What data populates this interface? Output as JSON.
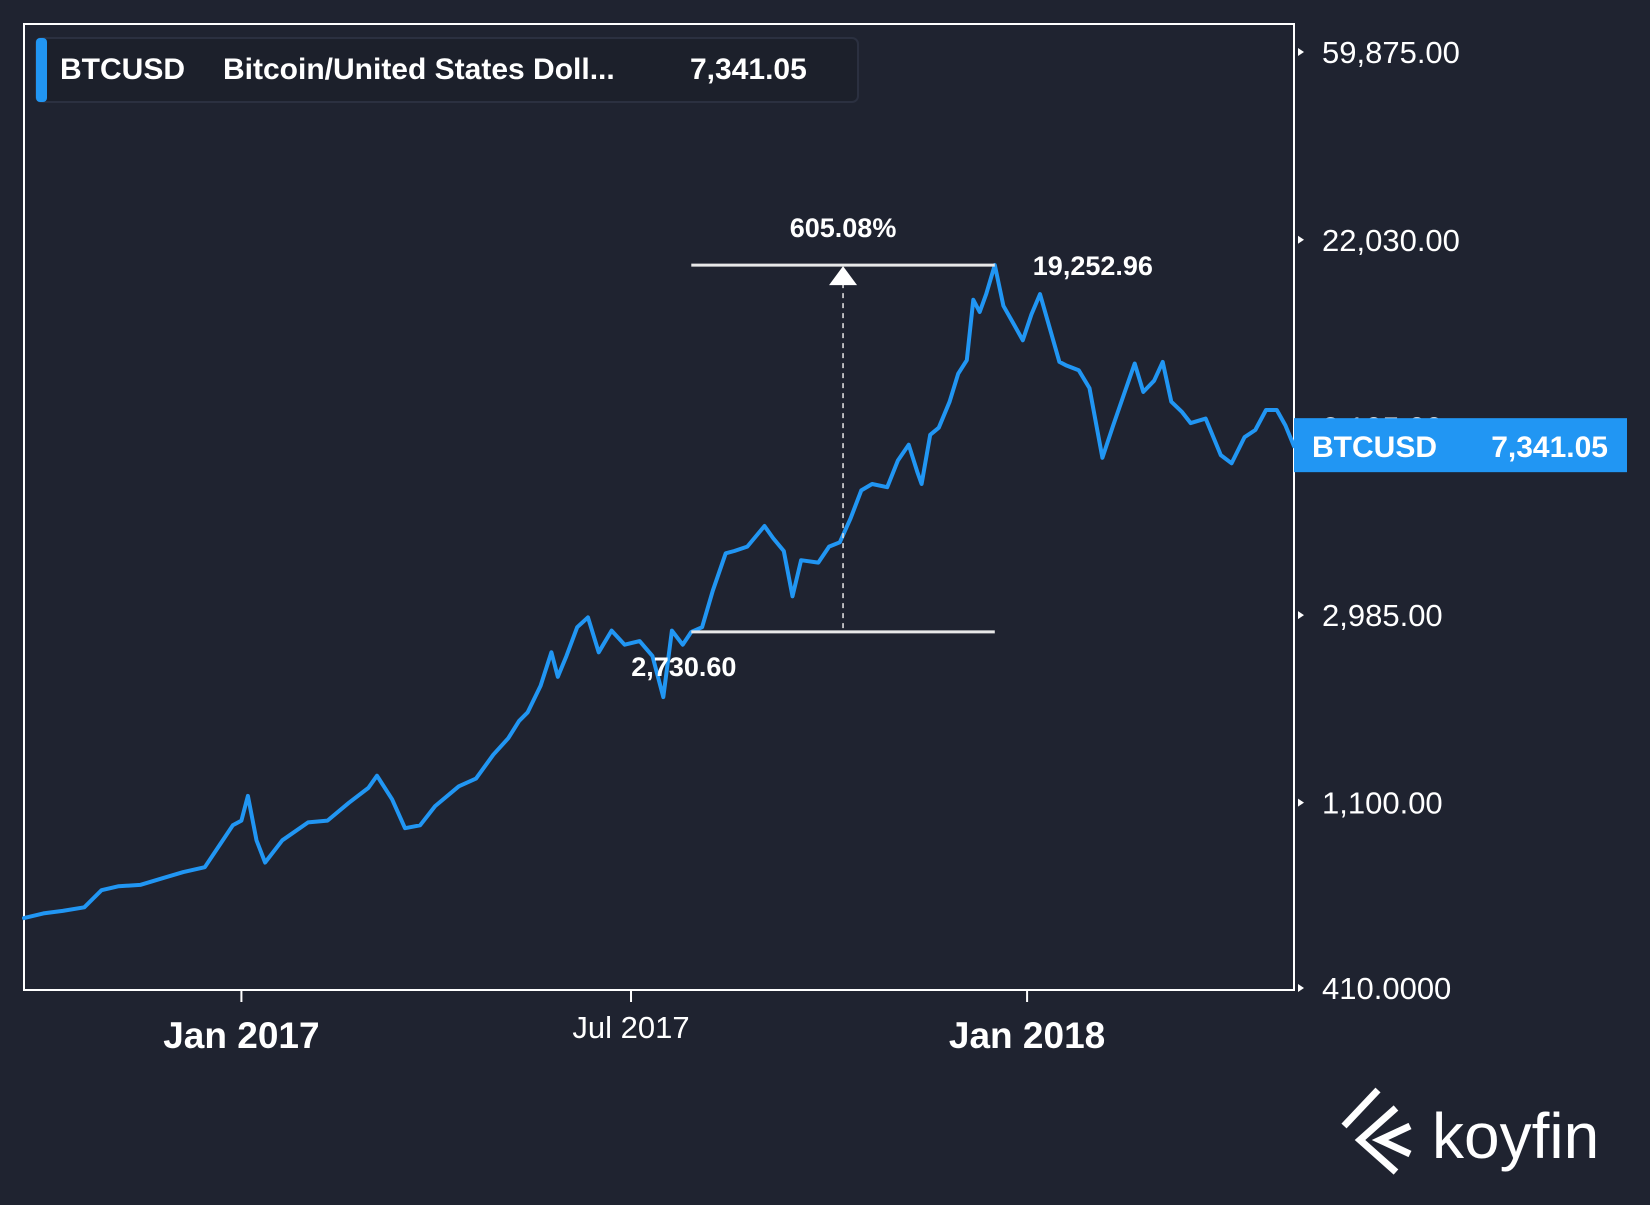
{
  "colors": {
    "background": "#1f2330",
    "line": "#2196f3",
    "axis": "#ffffff",
    "text": "#ffffff",
    "tag_bg": "#2196f3",
    "legend_bg": "#1c202b"
  },
  "legend": {
    "symbol": "BTCUSD",
    "description": "Bitcoin/United States Doll...",
    "value": "7,341.05"
  },
  "price_tag": {
    "symbol": "BTCUSD",
    "value": "7,341.05"
  },
  "measure": {
    "percent": "605.08%",
    "low_label": "2,730.60",
    "high_label": "19,252.96",
    "low": 2730.6,
    "high": 19252.96,
    "start_date": "2017-07-29",
    "end_date": "2017-12-17"
  },
  "logo": {
    "text": "koyfin"
  },
  "chart_data": {
    "type": "line",
    "title": "",
    "xlabel": "",
    "ylabel": "",
    "y_scale": "log",
    "ylim": [
      410,
      59875
    ],
    "xlim": [
      "2016-09-22",
      "2018-05-05"
    ],
    "grid": false,
    "legend": "top-left",
    "y_ticks": [
      {
        "value": 59875,
        "label": "59,875.00"
      },
      {
        "value": 22030,
        "label": "22,030.00"
      },
      {
        "value": 8105,
        "label": "8,105.00"
      },
      {
        "value": 2985,
        "label": "2,985.00"
      },
      {
        "value": 1100,
        "label": "1,100.00"
      },
      {
        "value": 410,
        "label": "410.0000"
      }
    ],
    "x_ticks": [
      {
        "date": "2017-01-01",
        "label": "Jan 2017",
        "major": true
      },
      {
        "date": "2017-07-01",
        "label": "Jul 2017",
        "major": false
      },
      {
        "date": "2018-01-01",
        "label": "Jan 2018",
        "major": true
      }
    ],
    "series": [
      {
        "name": "BTCUSD",
        "points": [
          [
            "2016-09-22",
            595
          ],
          [
            "2016-10-01",
            610
          ],
          [
            "2016-10-10",
            618
          ],
          [
            "2016-10-20",
            630
          ],
          [
            "2016-10-28",
            690
          ],
          [
            "2016-11-05",
            705
          ],
          [
            "2016-11-15",
            710
          ],
          [
            "2016-11-25",
            735
          ],
          [
            "2016-12-05",
            760
          ],
          [
            "2016-12-15",
            780
          ],
          [
            "2016-12-22",
            880
          ],
          [
            "2016-12-28",
            975
          ],
          [
            "2017-01-01",
            1000
          ],
          [
            "2017-01-04",
            1140
          ],
          [
            "2017-01-08",
            900
          ],
          [
            "2017-01-12",
            800
          ],
          [
            "2017-01-20",
            900
          ],
          [
            "2017-02-01",
            990
          ],
          [
            "2017-02-10",
            1000
          ],
          [
            "2017-02-20",
            1100
          ],
          [
            "2017-03-01",
            1190
          ],
          [
            "2017-03-05",
            1270
          ],
          [
            "2017-03-12",
            1120
          ],
          [
            "2017-03-18",
            960
          ],
          [
            "2017-03-25",
            975
          ],
          [
            "2017-04-01",
            1080
          ],
          [
            "2017-04-12",
            1200
          ],
          [
            "2017-04-20",
            1250
          ],
          [
            "2017-04-28",
            1420
          ],
          [
            "2017-05-05",
            1550
          ],
          [
            "2017-05-10",
            1700
          ],
          [
            "2017-05-14",
            1780
          ],
          [
            "2017-05-20",
            2050
          ],
          [
            "2017-05-25",
            2450
          ],
          [
            "2017-05-28",
            2150
          ],
          [
            "2017-06-01",
            2400
          ],
          [
            "2017-06-06",
            2800
          ],
          [
            "2017-06-11",
            2950
          ],
          [
            "2017-06-16",
            2450
          ],
          [
            "2017-06-22",
            2750
          ],
          [
            "2017-06-28",
            2550
          ],
          [
            "2017-07-05",
            2600
          ],
          [
            "2017-07-11",
            2400
          ],
          [
            "2017-07-16",
            1930
          ],
          [
            "2017-07-20",
            2750
          ],
          [
            "2017-07-25",
            2550
          ],
          [
            "2017-07-29",
            2730.6
          ],
          [
            "2017-08-03",
            2800
          ],
          [
            "2017-08-08",
            3400
          ],
          [
            "2017-08-14",
            4150
          ],
          [
            "2017-08-18",
            4200
          ],
          [
            "2017-08-24",
            4300
          ],
          [
            "2017-09-01",
            4800
          ],
          [
            "2017-09-05",
            4500
          ],
          [
            "2017-09-10",
            4200
          ],
          [
            "2017-09-14",
            3300
          ],
          [
            "2017-09-18",
            4000
          ],
          [
            "2017-09-26",
            3950
          ],
          [
            "2017-10-01",
            4300
          ],
          [
            "2017-10-06",
            4400
          ],
          [
            "2017-10-11",
            5000
          ],
          [
            "2017-10-16",
            5800
          ],
          [
            "2017-10-21",
            6000
          ],
          [
            "2017-10-28",
            5900
          ],
          [
            "2017-11-02",
            6800
          ],
          [
            "2017-11-07",
            7400
          ],
          [
            "2017-11-11",
            6400
          ],
          [
            "2017-11-13",
            6000
          ],
          [
            "2017-11-17",
            7800
          ],
          [
            "2017-11-21",
            8100
          ],
          [
            "2017-11-26",
            9300
          ],
          [
            "2017-11-30",
            10800
          ],
          [
            "2017-12-04",
            11600
          ],
          [
            "2017-12-07",
            16000
          ],
          [
            "2017-12-10",
            15000
          ],
          [
            "2017-12-13",
            16500
          ],
          [
            "2017-12-17",
            19252.96
          ],
          [
            "2017-12-21",
            15500
          ],
          [
            "2017-12-26",
            14000
          ],
          [
            "2017-12-30",
            12900
          ],
          [
            "2018-01-03",
            14800
          ],
          [
            "2018-01-07",
            16500
          ],
          [
            "2018-01-12",
            13500
          ],
          [
            "2018-01-16",
            11500
          ],
          [
            "2018-01-19",
            11300
          ],
          [
            "2018-01-25",
            11000
          ],
          [
            "2018-01-30",
            10000
          ],
          [
            "2018-02-05",
            6900
          ],
          [
            "2018-02-10",
            8200
          ],
          [
            "2018-02-16",
            10000
          ],
          [
            "2018-02-20",
            11400
          ],
          [
            "2018-02-24",
            9800
          ],
          [
            "2018-03-01",
            10400
          ],
          [
            "2018-03-05",
            11500
          ],
          [
            "2018-03-09",
            9300
          ],
          [
            "2018-03-14",
            8800
          ],
          [
            "2018-03-18",
            8300
          ],
          [
            "2018-03-25",
            8500
          ],
          [
            "2018-04-01",
            7000
          ],
          [
            "2018-04-06",
            6700
          ],
          [
            "2018-04-12",
            7700
          ],
          [
            "2018-04-17",
            8000
          ],
          [
            "2018-04-22",
            8900
          ],
          [
            "2018-04-27",
            8900
          ],
          [
            "2018-05-01",
            8200
          ],
          [
            "2018-05-05",
            7341.05
          ]
        ]
      }
    ]
  }
}
